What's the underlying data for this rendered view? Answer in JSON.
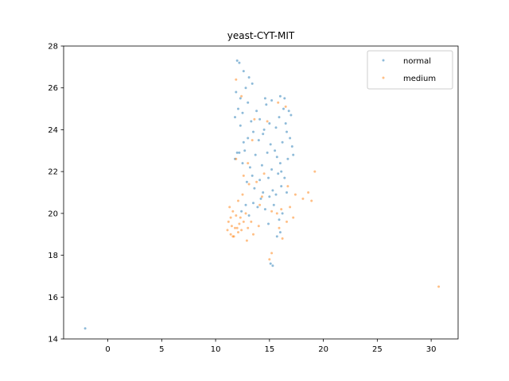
{
  "chart_data": {
    "type": "scatter",
    "title": "yeast-CYT-MIT",
    "xlabel": "",
    "ylabel": "",
    "xlim": [
      -4.1,
      32.5
    ],
    "ylim": [
      14.0,
      28.0
    ],
    "xticks": [
      0,
      5,
      10,
      15,
      20,
      25,
      30
    ],
    "yticks": [
      14,
      16,
      18,
      20,
      22,
      24,
      26,
      28
    ],
    "grid": false,
    "legend_position": "top-right",
    "series": [
      {
        "name": "normal",
        "color": "#1f77b4",
        "alpha": 0.5,
        "points": [
          [
            -2.1,
            14.5
          ],
          [
            12.0,
            27.3
          ],
          [
            12.2,
            27.2
          ],
          [
            12.6,
            26.8
          ],
          [
            13.1,
            26.5
          ],
          [
            13.4,
            26.2
          ],
          [
            12.8,
            26.0
          ],
          [
            11.9,
            25.8
          ],
          [
            12.3,
            25.5
          ],
          [
            13.0,
            25.3
          ],
          [
            14.6,
            25.5
          ],
          [
            15.2,
            25.4
          ],
          [
            16.0,
            25.6
          ],
          [
            16.4,
            25.5
          ],
          [
            12.1,
            25.0
          ],
          [
            12.5,
            24.8
          ],
          [
            11.8,
            24.6
          ],
          [
            13.3,
            24.4
          ],
          [
            14.1,
            24.5
          ],
          [
            15.0,
            24.3
          ],
          [
            16.8,
            24.9
          ],
          [
            17.0,
            24.7
          ],
          [
            16.5,
            24.3
          ],
          [
            15.6,
            24.1
          ],
          [
            14.5,
            24.0
          ],
          [
            13.5,
            23.9
          ],
          [
            13.0,
            23.6
          ],
          [
            12.6,
            23.4
          ],
          [
            14.0,
            23.5
          ],
          [
            15.1,
            23.3
          ],
          [
            16.2,
            23.4
          ],
          [
            16.9,
            23.6
          ],
          [
            15.5,
            23.0
          ],
          [
            14.8,
            22.9
          ],
          [
            13.7,
            22.8
          ],
          [
            12.2,
            22.9
          ],
          [
            11.8,
            22.6
          ],
          [
            12.5,
            22.4
          ],
          [
            13.2,
            22.2
          ],
          [
            14.3,
            22.3
          ],
          [
            15.2,
            22.1
          ],
          [
            16.0,
            22.4
          ],
          [
            16.7,
            22.6
          ],
          [
            17.2,
            22.8
          ],
          [
            15.8,
            21.9
          ],
          [
            14.9,
            21.7
          ],
          [
            14.1,
            21.6
          ],
          [
            13.4,
            21.8
          ],
          [
            12.9,
            21.5
          ],
          [
            13.6,
            21.2
          ],
          [
            14.4,
            21.0
          ],
          [
            15.3,
            21.1
          ],
          [
            16.1,
            21.3
          ],
          [
            16.6,
            21.0
          ],
          [
            15.0,
            20.8
          ],
          [
            14.2,
            20.7
          ],
          [
            13.5,
            20.5
          ],
          [
            12.8,
            20.4
          ],
          [
            12.4,
            20.1
          ],
          [
            13.1,
            19.9
          ],
          [
            14.6,
            20.2
          ],
          [
            15.4,
            20.4
          ],
          [
            16.2,
            20.0
          ],
          [
            15.9,
            19.7
          ],
          [
            14.9,
            19.5
          ],
          [
            16.0,
            19.1
          ],
          [
            15.7,
            18.9
          ],
          [
            15.1,
            17.6
          ],
          [
            15.3,
            17.5
          ],
          [
            12.0,
            22.9
          ],
          [
            13.8,
            24.9
          ],
          [
            14.7,
            25.2
          ],
          [
            16.3,
            25.0
          ],
          [
            12.7,
            23.0
          ],
          [
            15.7,
            22.7
          ],
          [
            16.4,
            21.7
          ],
          [
            13.9,
            20.3
          ],
          [
            15.6,
            20.9
          ],
          [
            14.4,
            23.8
          ],
          [
            15.9,
            24.6
          ],
          [
            16.6,
            23.9
          ],
          [
            17.1,
            23.2
          ],
          [
            16.1,
            22.0
          ],
          [
            12.3,
            24.2
          ]
        ]
      },
      {
        "name": "medium",
        "color": "#ff7f0e",
        "alpha": 0.5,
        "points": [
          [
            30.7,
            16.5
          ],
          [
            11.9,
            26.4
          ],
          [
            12.4,
            25.6
          ],
          [
            15.8,
            25.3
          ],
          [
            16.5,
            25.1
          ],
          [
            13.6,
            24.5
          ],
          [
            14.8,
            24.4
          ],
          [
            11.9,
            22.6
          ],
          [
            13.0,
            22.4
          ],
          [
            12.6,
            21.8
          ],
          [
            13.1,
            21.4
          ],
          [
            13.8,
            21.5
          ],
          [
            16.7,
            21.3
          ],
          [
            19.2,
            22.0
          ],
          [
            18.6,
            21.0
          ],
          [
            18.9,
            20.6
          ],
          [
            17.4,
            20.9
          ],
          [
            18.1,
            20.7
          ],
          [
            11.3,
            20.3
          ],
          [
            11.6,
            20.1
          ],
          [
            11.9,
            19.9
          ],
          [
            12.3,
            19.8
          ],
          [
            12.8,
            20.0
          ],
          [
            11.2,
            19.6
          ],
          [
            11.5,
            19.4
          ],
          [
            11.8,
            19.3
          ],
          [
            12.2,
            19.5
          ],
          [
            12.6,
            19.6
          ],
          [
            11.1,
            19.2
          ],
          [
            11.4,
            19.0
          ],
          [
            11.7,
            18.9
          ],
          [
            12.1,
            19.1
          ],
          [
            13.0,
            19.3
          ],
          [
            13.5,
            19.0
          ],
          [
            12.9,
            18.7
          ],
          [
            14.0,
            19.4
          ],
          [
            15.9,
            19.3
          ],
          [
            16.6,
            19.6
          ],
          [
            17.2,
            19.8
          ],
          [
            16.2,
            18.8
          ],
          [
            15.2,
            18.1
          ],
          [
            15.0,
            17.8
          ],
          [
            14.1,
            20.4
          ],
          [
            15.2,
            20.1
          ],
          [
            16.9,
            20.3
          ],
          [
            14.5,
            21.9
          ],
          [
            12.1,
            20.6
          ],
          [
            12.5,
            20.9
          ],
          [
            11.4,
            19.8
          ],
          [
            11.6,
            18.9
          ],
          [
            12.0,
            19.3
          ],
          [
            12.4,
            19.2
          ],
          [
            13.3,
            19.6
          ],
          [
            15.7,
            20.0
          ],
          [
            16.1,
            20.2
          ],
          [
            14.3,
            20.8
          ],
          [
            13.4,
            23.5
          ]
        ]
      }
    ]
  }
}
